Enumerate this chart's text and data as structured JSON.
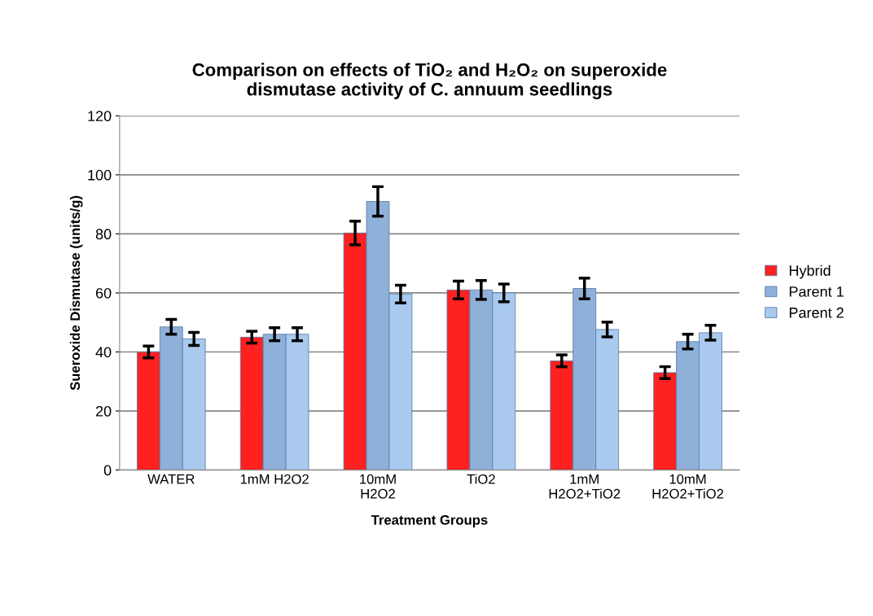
{
  "chart_data": {
    "type": "bar",
    "title": "Comparison on effects of TiO₂ and H₂O₂ on superoxide\ndismutase activity of C. annuum seedlings",
    "xlabel": "Treatment Groups",
    "ylabel": "Sueroxide Dismutase (units/g)",
    "categories": [
      "WATER",
      "1mM H2O2",
      "10mM\nH2O2",
      "TiO2",
      "1mM\nH2O2+TiO2",
      "10mM\nH2O2+TiO2"
    ],
    "series": [
      {
        "name": "Hybrid",
        "color": "#ff2020",
        "values": [
          40,
          45,
          80.3,
          61,
          37,
          33
        ],
        "errors": [
          2,
          2,
          4,
          3,
          2,
          2
        ]
      },
      {
        "name": "Parent 1",
        "color": "#8fb0d8",
        "values": [
          48.5,
          46,
          91,
          61,
          61.5,
          43.5
        ],
        "errors": [
          2.5,
          2.2,
          5,
          3.2,
          3.5,
          2.5
        ]
      },
      {
        "name": "Parent 2",
        "color": "#a9c9ee",
        "values": [
          44.4,
          46,
          59.6,
          60,
          47.6,
          46.5
        ],
        "errors": [
          2.2,
          2.2,
          3,
          3,
          2.5,
          2.5
        ]
      }
    ],
    "ylim": [
      0,
      120
    ],
    "yticks": [
      0,
      20,
      40,
      60,
      80,
      100,
      120
    ],
    "grid": "y",
    "legend": "right"
  }
}
